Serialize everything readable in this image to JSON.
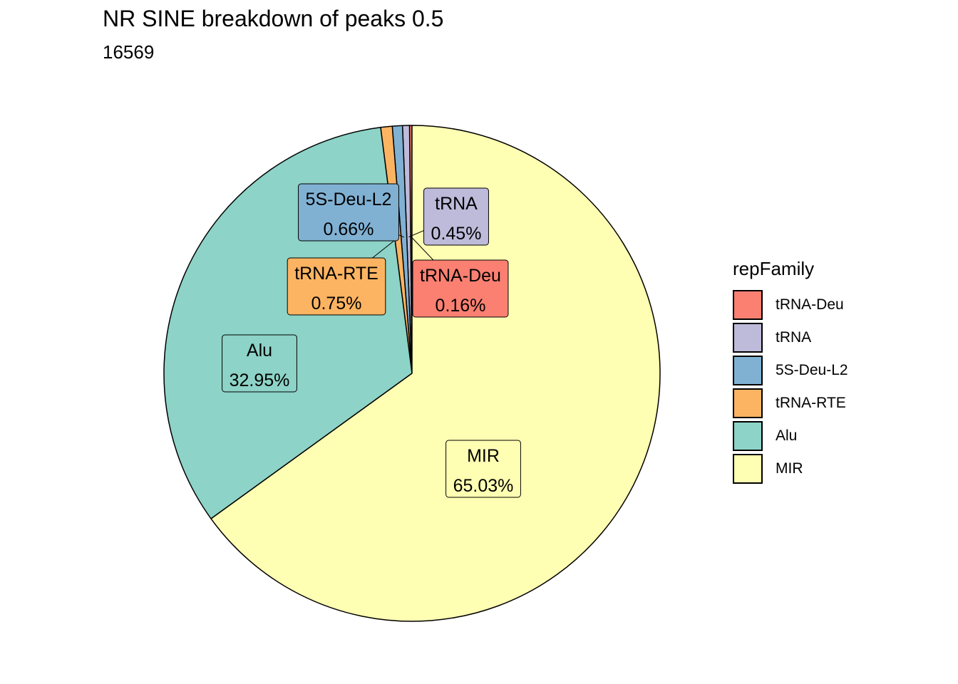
{
  "title": "NR SINE breakdown of peaks 0.5",
  "subtitle": "16569",
  "chart_data": {
    "type": "pie",
    "title": "NR SINE breakdown of peaks 0.5",
    "subtitle": "16569",
    "legend_title": "repFamily",
    "legend_position": "right",
    "slices": [
      {
        "label": "tRNA-Deu",
        "value": 0.16,
        "percent_label": "0.16%",
        "color": "#FB8072"
      },
      {
        "label": "tRNA",
        "value": 0.45,
        "percent_label": "0.45%",
        "color": "#BEBADA"
      },
      {
        "label": "5S-Deu-L2",
        "value": 0.66,
        "percent_label": "0.66%",
        "color": "#80B1D3"
      },
      {
        "label": "tRNA-RTE",
        "value": 0.75,
        "percent_label": "0.75%",
        "color": "#FDB462"
      },
      {
        "label": "Alu",
        "value": 32.95,
        "percent_label": "32.95%",
        "color": "#8DD3C7"
      },
      {
        "label": "MIR",
        "value": 65.03,
        "percent_label": "65.03%",
        "color": "#FFFFB3"
      }
    ]
  }
}
